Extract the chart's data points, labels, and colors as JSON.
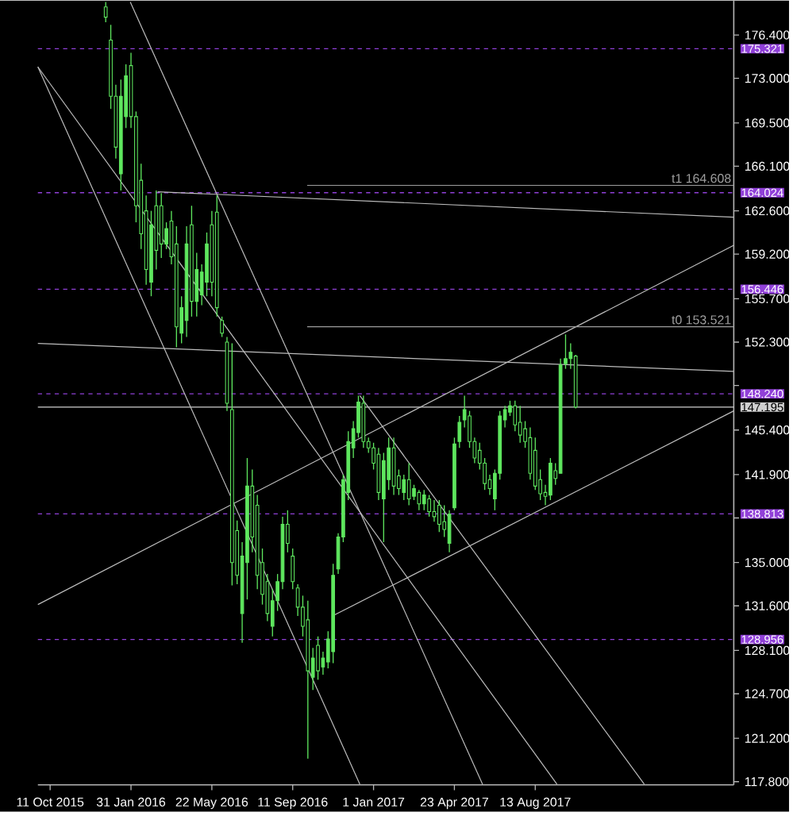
{
  "chart_data": {
    "type": "candlestick",
    "color": "#5ee65e",
    "x": [
      "2015-12-27",
      "2016-01-03",
      "2016-01-10",
      "2016-01-17",
      "2016-01-24",
      "2016-01-31",
      "2016-02-07",
      "2016-02-14",
      "2016-02-21",
      "2016-02-28",
      "2016-03-06",
      "2016-03-13",
      "2016-03-20",
      "2016-03-27",
      "2016-04-03",
      "2016-04-10",
      "2016-04-17",
      "2016-04-24",
      "2016-05-01",
      "2016-05-08",
      "2016-05-15",
      "2016-05-22",
      "2016-05-29",
      "2016-06-05",
      "2016-06-12",
      "2016-06-19",
      "2016-06-26",
      "2016-07-03",
      "2016-07-10",
      "2016-07-17",
      "2016-07-24",
      "2016-07-31",
      "2016-08-07",
      "2016-08-14",
      "2016-08-21",
      "2016-08-28",
      "2016-09-04",
      "2016-09-11",
      "2016-09-18",
      "2016-09-25",
      "2016-10-02",
      "2016-10-09",
      "2016-10-16",
      "2016-10-23",
      "2016-10-30",
      "2016-11-06",
      "2016-11-13",
      "2016-11-20",
      "2016-11-27",
      "2016-12-04",
      "2016-12-11",
      "2016-12-18",
      "2016-12-25",
      "2017-01-01",
      "2017-01-08",
      "2017-01-15",
      "2017-01-22",
      "2017-01-29",
      "2017-02-05",
      "2017-02-12",
      "2017-02-19",
      "2017-02-26",
      "2017-03-05",
      "2017-03-12",
      "2017-03-19",
      "2017-03-26",
      "2017-04-02",
      "2017-04-09",
      "2017-04-16",
      "2017-04-23",
      "2017-04-30",
      "2017-05-07",
      "2017-05-14",
      "2017-05-21",
      "2017-05-28",
      "2017-06-04",
      "2017-06-11",
      "2017-06-18",
      "2017-06-25",
      "2017-07-02",
      "2017-07-09",
      "2017-07-16",
      "2017-07-23",
      "2017-07-30",
      "2017-08-06",
      "2017-08-13",
      "2017-08-20",
      "2017-08-27",
      "2017-09-03",
      "2017-09-10",
      "2017-09-17",
      "2017-09-24",
      "2017-10-01",
      "2017-10-08"
    ],
    "ohlc": [
      [
        178.6,
        179.0,
        177.4,
        177.8
      ],
      [
        176.0,
        177.2,
        170.6,
        171.6
      ],
      [
        171.6,
        172.5,
        166.7,
        167.6
      ],
      [
        165.5,
        172.9,
        164.2,
        171.6
      ],
      [
        170.0,
        174.1,
        169.1,
        173.2
      ],
      [
        174.0,
        175.0,
        169.1,
        170.0
      ],
      [
        170.0,
        170.4,
        161.7,
        163.0
      ],
      [
        165.0,
        166.3,
        159.6,
        160.8
      ],
      [
        162.6,
        163.8,
        156.8,
        158.0
      ],
      [
        157.0,
        162.6,
        155.9,
        161.5
      ],
      [
        163.0,
        164.2,
        158.0,
        159.5
      ],
      [
        163.0,
        164.0,
        158.9,
        160.0
      ],
      [
        160.0,
        161.7,
        159.6,
        161.2
      ],
      [
        161.8,
        162.6,
        158.4,
        159.0
      ],
      [
        160.0,
        161.4,
        151.9,
        153.5
      ],
      [
        153.0,
        155.9,
        152.2,
        155.0
      ],
      [
        154.0,
        161.4,
        152.7,
        160.0
      ],
      [
        161.5,
        163.0,
        154.3,
        155.5
      ],
      [
        155.5,
        159.3,
        154.3,
        158.0
      ],
      [
        156.0,
        158.4,
        155.2,
        157.8
      ],
      [
        157.0,
        160.9,
        155.9,
        160.0
      ],
      [
        161.5,
        162.6,
        155.9,
        157.0
      ],
      [
        162.5,
        163.8,
        154.3,
        155.0
      ],
      [
        154.0,
        154.3,
        152.7,
        153.0
      ],
      [
        152.3,
        152.7,
        146.9,
        147.5
      ],
      [
        147.0,
        152.2,
        133.2,
        135.0
      ],
      [
        137.5,
        138.3,
        133.3,
        134.0
      ],
      [
        131.0,
        136.6,
        128.7,
        135.5
      ],
      [
        135.0,
        143.2,
        132.1,
        141.0
      ],
      [
        141.0,
        142.3,
        135.8,
        137.0
      ],
      [
        139.5,
        140.3,
        132.9,
        134.0
      ],
      [
        135.0,
        136.1,
        131.7,
        132.5
      ],
      [
        133.5,
        134.1,
        130.4,
        131.0
      ],
      [
        130.0,
        132.9,
        129.2,
        132.0
      ],
      [
        132.0,
        134.1,
        131.2,
        133.5
      ],
      [
        133.5,
        138.6,
        132.9,
        138.0
      ],
      [
        138.0,
        139.1,
        135.8,
        136.5
      ],
      [
        135.5,
        136.1,
        132.9,
        133.5
      ],
      [
        133.0,
        133.3,
        130.8,
        131.5
      ],
      [
        131.5,
        132.4,
        129.2,
        130.0
      ],
      [
        130.5,
        132.0,
        119.6,
        126.5
      ],
      [
        126.0,
        128.3,
        125.0,
        127.5
      ],
      [
        128.5,
        129.2,
        125.8,
        126.5
      ],
      [
        126.8,
        128.0,
        126.2,
        127.5
      ],
      [
        127.2,
        129.6,
        126.7,
        129.0
      ],
      [
        128.0,
        134.9,
        127.1,
        134.0
      ],
      [
        134.5,
        137.3,
        134.1,
        137.0
      ],
      [
        137.0,
        141.9,
        136.6,
        141.5
      ],
      [
        140.5,
        145.3,
        139.9,
        144.5
      ],
      [
        144.0,
        146.1,
        143.2,
        145.5
      ],
      [
        145.2,
        148.1,
        144.8,
        147.6
      ],
      [
        147.5,
        148.1,
        144.0,
        144.5
      ],
      [
        144.5,
        144.8,
        143.6,
        144.0
      ],
      [
        144.0,
        144.4,
        142.3,
        142.8
      ],
      [
        143.5,
        144.0,
        139.9,
        140.5
      ],
      [
        140.0,
        143.6,
        136.6,
        143.0
      ],
      [
        141.5,
        144.8,
        140.7,
        144.0
      ],
      [
        144.0,
        144.8,
        140.3,
        141.0
      ],
      [
        141.8,
        142.3,
        140.3,
        140.8
      ],
      [
        140.5,
        141.9,
        139.9,
        141.5
      ],
      [
        141.5,
        142.8,
        139.5,
        140.0
      ],
      [
        140.2,
        141.1,
        139.9,
        140.8
      ],
      [
        140.5,
        140.7,
        139.1,
        139.6
      ],
      [
        139.6,
        140.7,
        139.1,
        140.3
      ],
      [
        140.0,
        140.3,
        138.6,
        139.0
      ],
      [
        139.0,
        139.9,
        138.2,
        138.6
      ],
      [
        139.5,
        139.9,
        137.4,
        138.0
      ],
      [
        138.2,
        139.5,
        137.0,
        137.6
      ],
      [
        136.5,
        139.1,
        135.8,
        138.8
      ],
      [
        139.3,
        144.8,
        139.1,
        144.3
      ],
      [
        144.5,
        146.5,
        144.0,
        146.0
      ],
      [
        146.2,
        148.1,
        145.6,
        147.0
      ],
      [
        146.5,
        146.9,
        144.0,
        144.5
      ],
      [
        144.5,
        144.8,
        142.8,
        143.2
      ],
      [
        143.8,
        144.4,
        142.3,
        142.8
      ],
      [
        142.8,
        143.2,
        140.7,
        141.2
      ],
      [
        141.5,
        141.9,
        140.3,
        140.8
      ],
      [
        140.0,
        142.3,
        139.1,
        142.0
      ],
      [
        142.0,
        146.9,
        141.5,
        146.5
      ],
      [
        146.2,
        147.3,
        145.6,
        147.0
      ],
      [
        146.8,
        147.7,
        146.5,
        147.3
      ],
      [
        147.3,
        147.7,
        145.3,
        145.8
      ],
      [
        146.0,
        147.3,
        144.4,
        145.0
      ],
      [
        145.5,
        146.1,
        144.0,
        144.5
      ],
      [
        144.8,
        145.6,
        141.5,
        142.0
      ],
      [
        143.8,
        144.8,
        140.7,
        141.0
      ],
      [
        141.5,
        142.3,
        139.9,
        140.4
      ],
      [
        140.5,
        141.1,
        139.5,
        140.2
      ],
      [
        140.3,
        143.2,
        139.9,
        142.8
      ],
      [
        142.2,
        142.8,
        141.1,
        141.6
      ],
      [
        142.0,
        151.0,
        142.0,
        150.5
      ],
      [
        150.6,
        152.9,
        150.2,
        151.0
      ],
      [
        151.0,
        152.2,
        150.2,
        151.5
      ],
      [
        151.2,
        151.3,
        147.1,
        147.2
      ]
    ],
    "series": [
      {
        "type": "line",
        "color": "#bdbdbd",
        "x": [
          "2015-09-24",
          "2016-12-13"
        ],
        "values": [
          173.9,
          117.6
        ]
      },
      {
        "type": "line",
        "color": "#bdbdbd",
        "x": [
          "2015-09-24",
          "2017-09-12"
        ],
        "values": [
          173.9,
          117.6
        ]
      },
      {
        "type": "line",
        "color": "#bdbdbd",
        "x": [
          "2016-01-30",
          "2017-06-01"
        ],
        "values": [
          179.0,
          117.6
        ]
      },
      {
        "type": "line",
        "color": "#bdbdbd",
        "x": [
          "2016-12-13",
          "2018-01-11"
        ],
        "values": [
          148.1,
          117.6
        ]
      },
      {
        "type": "line",
        "color": "#bdbdbd",
        "x": [
          "2015-09-24",
          "2018-05-15"
        ],
        "values": [
          131.7,
          159.9
        ]
      },
      {
        "type": "line",
        "color": "#bdbdbd",
        "x": [
          "2016-11-05",
          "2018-05-15"
        ],
        "values": [
          130.8,
          146.9
        ]
      },
      {
        "type": "line",
        "color": "#bdbdbd",
        "x": [
          "2015-09-24",
          "2018-05-15"
        ],
        "values": [
          152.2,
          150.0
        ]
      },
      {
        "type": "line",
        "color": "#bdbdbd",
        "x": [
          "2016-03-08",
          "2018-05-15"
        ],
        "values": [
          164.1,
          162.1
        ]
      },
      {
        "type": "line",
        "color": "#9e9e9e",
        "name": "t1 164.608",
        "x": [
          "2016-10-01",
          "2018-05-15"
        ],
        "values": [
          164.6,
          164.6
        ]
      },
      {
        "type": "line",
        "color": "#9e9e9e",
        "name": "t0 153.521",
        "x": [
          "2016-10-01",
          "2018-05-15"
        ],
        "values": [
          153.5,
          153.5
        ]
      }
    ],
    "ref_lines": [
      {
        "axis": "y",
        "value": 175.321,
        "label": "175.321",
        "color": "#9040d8",
        "line_style": "dashed"
      },
      {
        "axis": "y",
        "value": 164.024,
        "label": "164.024",
        "color": "#9040d8",
        "line_style": "dashed"
      },
      {
        "axis": "y",
        "value": 156.446,
        "label": "156.446",
        "color": "#9040d8",
        "line_style": "dashed"
      },
      {
        "axis": "y",
        "value": 148.24,
        "label": "148.240",
        "color": "#9040d8",
        "line_style": "dashed"
      },
      {
        "axis": "y",
        "value": 138.813,
        "label": "138.813",
        "color": "#9040d8",
        "line_style": "dashed"
      },
      {
        "axis": "y",
        "value": 128.956,
        "label": "128.956",
        "color": "#9040d8",
        "line_style": "dashed"
      },
      {
        "axis": "y",
        "value": 147.195,
        "label": "147.195",
        "color": "#d0d0d0",
        "line_style": "solid"
      }
    ],
    "xlim": [
      "2015-09-24",
      "2018-05-15"
    ],
    "xticks": [
      {
        "value": "2015-10-11",
        "label": "11 Oct 2015"
      },
      {
        "value": "2016-01-31",
        "label": "31 Jan 2016"
      },
      {
        "value": "2016-05-22",
        "label": "22 May 2016"
      },
      {
        "value": "2016-09-11",
        "label": "11 Sep 2016"
      },
      {
        "value": "2017-01-01",
        "label": "1 Jan 2017"
      },
      {
        "value": "2017-04-23",
        "label": "23 Apr 2017"
      },
      {
        "value": "2017-08-13",
        "label": "13 Aug 2017"
      }
    ],
    "ylim": [
      117.55,
      179.1
    ],
    "yticks": [
      {
        "value": 176.4,
        "label": "176.400"
      },
      {
        "value": 173.0,
        "label": "173.000"
      },
      {
        "value": 169.5,
        "label": "169.500"
      },
      {
        "value": 166.1,
        "label": "166.100"
      },
      {
        "value": 162.6,
        "label": "162.600"
      },
      {
        "value": 159.2,
        "label": "159.200"
      },
      {
        "value": 155.7,
        "label": "155.700"
      },
      {
        "value": 152.3,
        "label": "152.300"
      },
      {
        "value": 148.9,
        "label": null
      },
      {
        "value": 145.4,
        "label": "145.400"
      },
      {
        "value": 141.9,
        "label": "141.900"
      },
      {
        "value": 138.5,
        "label": null
      },
      {
        "value": 135.0,
        "label": "135.000"
      },
      {
        "value": 131.6,
        "label": "131.600"
      },
      {
        "value": 128.1,
        "label": "128.100"
      },
      {
        "value": 124.7,
        "label": "124.700"
      },
      {
        "value": 121.2,
        "label": "121.200"
      },
      {
        "value": 117.8,
        "label": "117.800"
      }
    ]
  }
}
